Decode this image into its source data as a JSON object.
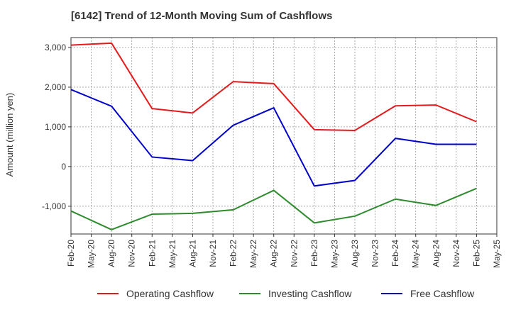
{
  "chart_data": {
    "type": "line",
    "title": "[6142]  Trend of 12-Month Moving Sum of Cashflows",
    "ylabel": "Amount (million yen)",
    "xlabel": "",
    "x": [
      "Feb-20",
      "May-20",
      "Aug-20",
      "Nov-20",
      "Feb-21",
      "May-21",
      "Aug-21",
      "Nov-21",
      "Feb-22",
      "May-22",
      "Aug-22",
      "Nov-22",
      "Feb-23",
      "May-23",
      "Aug-23",
      "Nov-23",
      "Feb-24",
      "May-24",
      "Aug-24",
      "Nov-24",
      "Feb-25",
      "May-25"
    ],
    "ylim": [
      -1700,
      3250
    ],
    "yticks": [
      3000,
      2000,
      1000,
      0,
      -1000
    ],
    "ytick_labels": [
      "3,000",
      "2,000",
      "1,000",
      "0",
      "-1,000"
    ],
    "grid": true,
    "legend_position": "bottom",
    "series": [
      {
        "name": "Operating Cashflow",
        "color": "#e41a1c",
        "points": [
          [
            "Feb-20",
            3060
          ],
          [
            "Aug-20",
            3110
          ],
          [
            "Feb-21",
            1460
          ],
          [
            "Aug-21",
            1350
          ],
          [
            "Feb-22",
            2140
          ],
          [
            "Aug-22",
            2090
          ],
          [
            "Feb-23",
            930
          ],
          [
            "Aug-23",
            910
          ],
          [
            "Feb-24",
            1530
          ],
          [
            "Aug-24",
            1550
          ],
          [
            "Feb-25",
            1130
          ]
        ]
      },
      {
        "name": "Investing Cashflow",
        "color": "#2e8b2e",
        "points": [
          [
            "Feb-20",
            -1120
          ],
          [
            "Aug-20",
            -1590
          ],
          [
            "Feb-21",
            -1200
          ],
          [
            "Aug-21",
            -1180
          ],
          [
            "Feb-22",
            -1090
          ],
          [
            "Aug-22",
            -600
          ],
          [
            "Feb-23",
            -1420
          ],
          [
            "Aug-23",
            -1250
          ],
          [
            "Feb-24",
            -820
          ],
          [
            "Aug-24",
            -980
          ],
          [
            "Feb-25",
            -550
          ]
        ]
      },
      {
        "name": "Free Cashflow",
        "color": "#0000cc",
        "points": [
          [
            "Feb-20",
            1940
          ],
          [
            "Aug-20",
            1520
          ],
          [
            "Feb-21",
            240
          ],
          [
            "Aug-21",
            150
          ],
          [
            "Feb-22",
            1040
          ],
          [
            "Aug-22",
            1480
          ],
          [
            "Feb-23",
            -490
          ],
          [
            "Aug-23",
            -350
          ],
          [
            "Feb-24",
            710
          ],
          [
            "Aug-24",
            560
          ],
          [
            "Feb-25",
            560
          ]
        ]
      }
    ]
  }
}
